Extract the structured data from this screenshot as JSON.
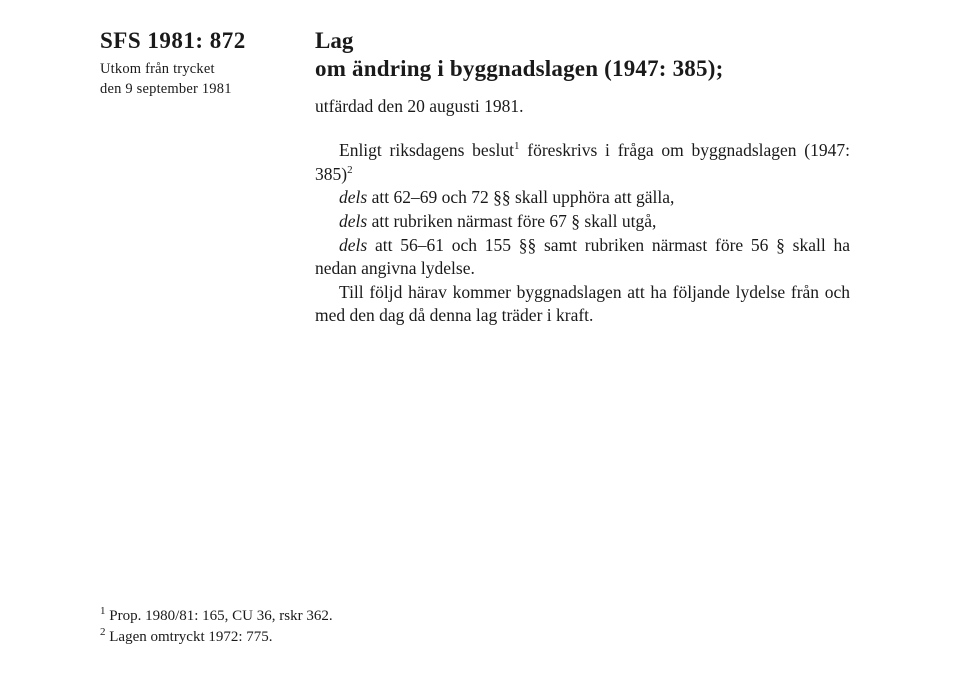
{
  "header": {
    "sfs": "SFS 1981: 872",
    "pub_line1": "Utkom från trycket",
    "pub_line2": "den 9 september 1981",
    "lag": "Lag",
    "title2": "om ändring i byggnadslagen (1947: 385);",
    "issued": "utfärdad den 20 augusti 1981."
  },
  "body": {
    "intro_a": "Enligt riksdagens beslut",
    "intro_sup": "1",
    "intro_b": " föreskrivs i fråga om byggnadslagen (1947: 385)",
    "intro_sup2": "2",
    "dels1_i": "dels",
    "dels1_t": " att 62–69 och 72 §§ skall upphöra att gälla,",
    "dels2_i": "dels",
    "dels2_t": " att rubriken närmast före 67 § skall utgå,",
    "dels3_i": "dels",
    "dels3_t": " att 56–61 och 155 §§ samt rubriken närmast före 56 § skall ha nedan angivna lydelse.",
    "follow": "Till följd härav kommer byggnadslagen att ha följande lydelse från och med den dag då denna lag träder i kraft."
  },
  "footnotes": {
    "f1_sup": "1",
    "f1": " Prop. 1980/81: 165, CU 36, rskr 362.",
    "f2_sup": "2",
    "f2": " Lagen omtryckt 1972: 775."
  },
  "style": {
    "page_bg": "#ffffff",
    "text_color": "#1a1a1a",
    "heading_fontsize_pt": 17,
    "body_fontsize_pt": 13,
    "footnote_fontsize_pt": 11,
    "font_family": "Times New Roman"
  }
}
